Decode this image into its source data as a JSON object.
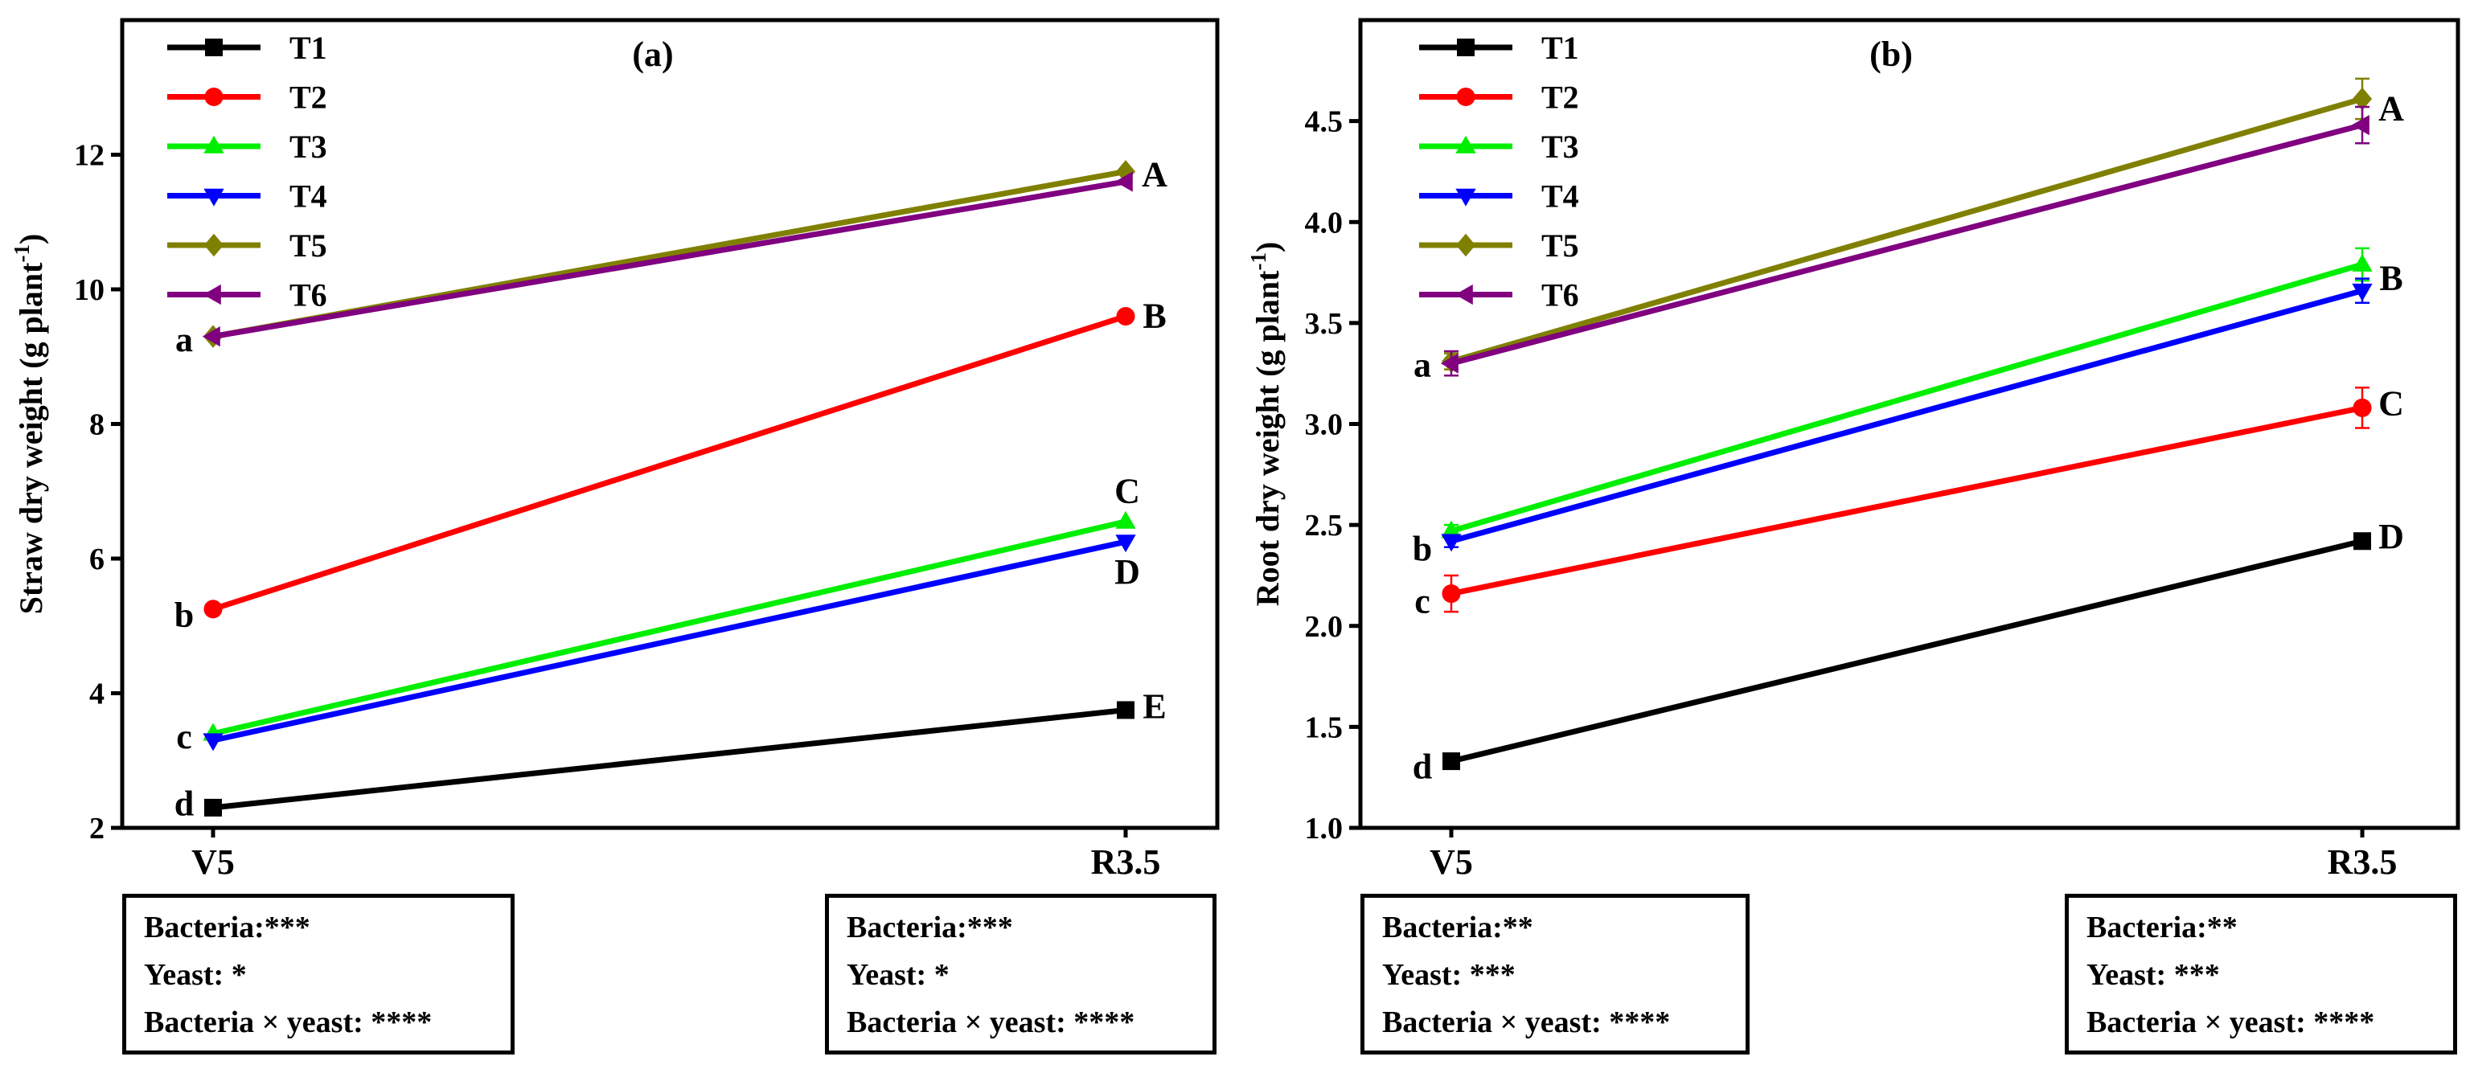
{
  "chart_data": [
    {
      "type": "line",
      "panel_label": "(a)",
      "ylabel": "Straw dry weight (g plant",
      "ylabel_exponent": "-1",
      "ylabel_close": ")",
      "categories": [
        "V5",
        "R3.5"
      ],
      "ylim": [
        2,
        14
      ],
      "yticks": [
        2,
        4,
        6,
        8,
        10,
        12
      ],
      "ytick_labels": [
        "2",
        "4",
        "6",
        "8",
        "10",
        "12"
      ],
      "legend_position": "top-left",
      "series": [
        {
          "name": "T1",
          "color": "#000000",
          "marker": "square",
          "values": [
            2.3,
            3.75
          ]
        },
        {
          "name": "T2",
          "color": "#ff0000",
          "marker": "circle",
          "values": [
            5.25,
            9.6
          ]
        },
        {
          "name": "T3",
          "color": "#00ee00",
          "marker": "triangle-up",
          "values": [
            3.4,
            6.55
          ]
        },
        {
          "name": "T4",
          "color": "#0000ff",
          "marker": "triangle-down",
          "values": [
            3.3,
            6.25
          ]
        },
        {
          "name": "T5",
          "color": "#808000",
          "marker": "diamond",
          "values": [
            9.3,
            11.75
          ]
        },
        {
          "name": "T6",
          "color": "#800080",
          "marker": "triangle-left",
          "values": [
            9.3,
            11.6
          ]
        }
      ],
      "letters_left": [
        {
          "text": "a",
          "value": 9.25
        },
        {
          "text": "b",
          "value": 5.15
        },
        {
          "text": "c",
          "value": 3.35
        },
        {
          "text": "d",
          "value": 2.35
        }
      ],
      "letters_right": [
        {
          "text": "A",
          "value": 11.7,
          "side": "right"
        },
        {
          "text": "B",
          "value": 9.6,
          "side": "right"
        },
        {
          "text": "C",
          "value": 7.0,
          "side": "above"
        },
        {
          "text": "D",
          "value": 5.8,
          "side": "below"
        },
        {
          "text": "E",
          "value": 3.8,
          "side": "right"
        }
      ],
      "stats_left": [
        "Bacteria:***",
        "Yeast: *",
        "Bacteria × yeast: ****"
      ],
      "stats_right": [
        "Bacteria:***",
        "Yeast: *",
        "Bacteria × yeast: ****"
      ]
    },
    {
      "type": "line",
      "panel_label": "(b)",
      "ylabel": "Root dry weight (g plant",
      "ylabel_exponent": "-1",
      "ylabel_close": ")",
      "categories": [
        "V5",
        "R3.5"
      ],
      "ylim": [
        1.0,
        5.0
      ],
      "yticks": [
        1.0,
        1.5,
        2.0,
        2.5,
        3.0,
        3.5,
        4.0,
        4.5
      ],
      "ytick_labels": [
        "1.0",
        "1.5",
        "2.0",
        "2.5",
        "3.0",
        "3.5",
        "4.0",
        "4.5"
      ],
      "legend_position": "top-left",
      "series": [
        {
          "name": "T1",
          "color": "#000000",
          "marker": "square",
          "values": [
            1.33,
            2.42
          ],
          "errors": [
            0.02,
            0.02
          ]
        },
        {
          "name": "T2",
          "color": "#ff0000",
          "marker": "circle",
          "values": [
            2.16,
            3.08
          ],
          "errors": [
            0.09,
            0.1
          ]
        },
        {
          "name": "T3",
          "color": "#00ee00",
          "marker": "triangle-up",
          "values": [
            2.47,
            3.79
          ],
          "errors": [
            0.03,
            0.08
          ]
        },
        {
          "name": "T4",
          "color": "#0000ff",
          "marker": "triangle-down",
          "values": [
            2.42,
            3.66
          ],
          "errors": [
            0.03,
            0.06
          ]
        },
        {
          "name": "T5",
          "color": "#808000",
          "marker": "diamond",
          "values": [
            3.31,
            4.61
          ],
          "errors": [
            0.04,
            0.1
          ]
        },
        {
          "name": "T6",
          "color": "#800080",
          "marker": "triangle-left",
          "values": [
            3.3,
            4.48
          ],
          "errors": [
            0.06,
            0.09
          ]
        }
      ],
      "letters_left": [
        {
          "text": "a",
          "value": 3.29
        },
        {
          "text": "b",
          "value": 2.38
        },
        {
          "text": "c",
          "value": 2.12
        },
        {
          "text": "d",
          "value": 1.3
        }
      ],
      "letters_right": [
        {
          "text": "A",
          "value": 4.56,
          "side": "right"
        },
        {
          "text": "B",
          "value": 3.72,
          "side": "right"
        },
        {
          "text": "C",
          "value": 3.1,
          "side": "right"
        },
        {
          "text": "D",
          "value": 2.44,
          "side": "right"
        }
      ],
      "stats_left": [
        "Bacteria:**",
        "Yeast: ***",
        "Bacteria × yeast: ****"
      ],
      "stats_right": [
        "Bacteria:**",
        "Yeast: ***",
        "Bacteria × yeast: ****"
      ]
    }
  ]
}
